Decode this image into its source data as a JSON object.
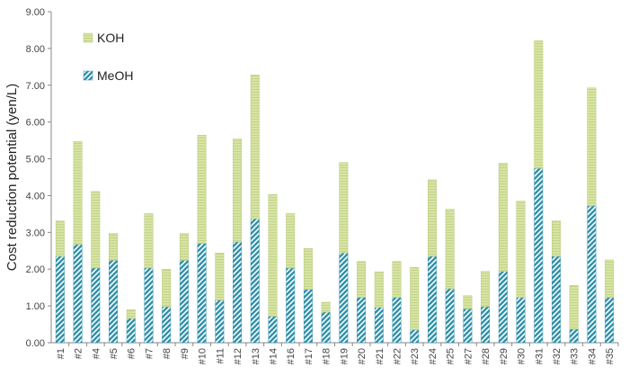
{
  "chart_data": {
    "type": "bar",
    "stacked": true,
    "title": "",
    "xlabel": "",
    "ylabel": "Cost reduction potential (yen/L)",
    "ylim": [
      0,
      9
    ],
    "yticks": [
      "0.00",
      "1.00",
      "2.00",
      "3.00",
      "4.00",
      "5.00",
      "6.00",
      "7.00",
      "8.00",
      "9.00"
    ],
    "grid": false,
    "legend_position": "top-left",
    "categories": [
      "#1",
      "#2",
      "#4",
      "#5",
      "#6",
      "#7",
      "#8",
      "#9",
      "#10",
      "#11",
      "#12",
      "#13",
      "#14",
      "#16",
      "#17",
      "#18",
      "#19",
      "#20",
      "#21",
      "#22",
      "#23",
      "#24",
      "#25",
      "#27",
      "#28",
      "#29",
      "#30",
      "#31",
      "#32",
      "#33",
      "#34",
      "#35"
    ],
    "series": [
      {
        "name": "MeOH",
        "color": "#2e8fa8",
        "values": [
          2.35,
          2.67,
          2.03,
          2.24,
          0.66,
          2.03,
          0.98,
          2.24,
          2.7,
          1.16,
          2.74,
          3.37,
          0.72,
          2.03,
          1.45,
          0.83,
          2.44,
          1.23,
          0.96,
          1.23,
          0.35,
          2.35,
          1.47,
          0.92,
          0.98,
          1.94,
          1.23,
          4.74,
          2.35,
          0.37,
          3.72,
          1.23
        ]
      },
      {
        "name": "KOH",
        "color": "#d5e2a0",
        "values": [
          0.96,
          2.8,
          2.08,
          0.73,
          0.24,
          1.48,
          1.02,
          0.73,
          2.94,
          1.28,
          2.8,
          3.91,
          3.31,
          1.48,
          1.11,
          0.27,
          2.46,
          0.98,
          0.97,
          0.98,
          1.7,
          2.08,
          2.16,
          0.36,
          0.96,
          2.94,
          2.62,
          3.47,
          0.96,
          1.19,
          3.21,
          1.02
        ]
      }
    ]
  }
}
